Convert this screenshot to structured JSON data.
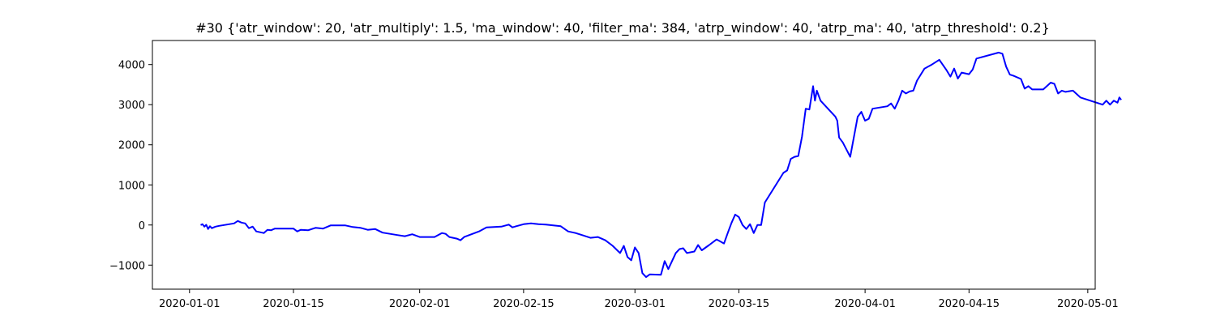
{
  "chart_data": {
    "type": "line",
    "title": "#30 {'atr_window': 20, 'atr_multiply': 1.5, 'ma_window': 40, 'filter_ma': 384, 'atrp_window': 40, 'atrp_ma': 40, 'atrp_threshold': 0.2}",
    "xlabel": "",
    "ylabel": "",
    "x_range": [
      "2019-12-27",
      "2020-05-02"
    ],
    "ylim": [
      -1600,
      4600
    ],
    "x_ticks": [
      "2020-01-01",
      "2020-01-15",
      "2020-02-01",
      "2020-02-15",
      "2020-03-01",
      "2020-03-15",
      "2020-04-01",
      "2020-04-15",
      "2020-05-01"
    ],
    "y_ticks": [
      -1000,
      0,
      1000,
      2000,
      3000,
      4000
    ],
    "y_tick_labels": [
      "−1000",
      "0",
      "1000",
      "2000",
      "3000",
      "4000"
    ],
    "grid": false,
    "series": [
      {
        "color": "#0000ff",
        "points": [
          [
            "2020-01-02T12:00",
            0
          ],
          [
            "2020-01-02T18:00",
            20
          ],
          [
            "2020-01-03T00:00",
            -40
          ],
          [
            "2020-01-03T06:00",
            5
          ],
          [
            "2020-01-03T12:00",
            -100
          ],
          [
            "2020-01-03T18:00",
            -30
          ],
          [
            "2020-01-04T00:00",
            -80
          ],
          [
            "2020-01-04T12:00",
            -40
          ],
          [
            "2020-01-05T00:00",
            -20
          ],
          [
            "2020-01-06T00:00",
            10
          ],
          [
            "2020-01-07T00:00",
            40
          ],
          [
            "2020-01-07T12:00",
            100
          ],
          [
            "2020-01-08T00:00",
            60
          ],
          [
            "2020-01-08T12:00",
            40
          ],
          [
            "2020-01-09T00:00",
            -80
          ],
          [
            "2020-01-09T12:00",
            -40
          ],
          [
            "2020-01-10T00:00",
            -160
          ],
          [
            "2020-01-11T00:00",
            -200
          ],
          [
            "2020-01-11T12:00",
            -120
          ],
          [
            "2020-01-12T00:00",
            -130
          ],
          [
            "2020-01-12T12:00",
            -90
          ],
          [
            "2020-01-15T00:00",
            -90
          ],
          [
            "2020-01-15T12:00",
            -160
          ],
          [
            "2020-01-16T00:00",
            -120
          ],
          [
            "2020-01-17T00:00",
            -130
          ],
          [
            "2020-01-18T00:00",
            -70
          ],
          [
            "2020-01-19T00:00",
            -90
          ],
          [
            "2020-01-20T00:00",
            -10
          ],
          [
            "2020-01-22T00:00",
            -10
          ],
          [
            "2020-01-23T00:00",
            -50
          ],
          [
            "2020-01-24T00:00",
            -70
          ],
          [
            "2020-01-25T00:00",
            -120
          ],
          [
            "2020-01-26T00:00",
            -100
          ],
          [
            "2020-01-27T00:00",
            -190
          ],
          [
            "2020-01-29T00:00",
            -250
          ],
          [
            "2020-01-30T00:00",
            -280
          ],
          [
            "2020-01-31T00:00",
            -230
          ],
          [
            "2020-02-01T00:00",
            -300
          ],
          [
            "2020-02-03T00:00",
            -300
          ],
          [
            "2020-02-04T00:00",
            -200
          ],
          [
            "2020-02-04T12:00",
            -220
          ],
          [
            "2020-02-05T00:00",
            -300
          ],
          [
            "2020-02-06T00:00",
            -340
          ],
          [
            "2020-02-06T12:00",
            -380
          ],
          [
            "2020-02-07T00:00",
            -300
          ],
          [
            "2020-02-09T00:00",
            -160
          ],
          [
            "2020-02-10T00:00",
            -60
          ],
          [
            "2020-02-12T00:00",
            -40
          ],
          [
            "2020-02-13T00:00",
            10
          ],
          [
            "2020-02-13T12:00",
            -60
          ],
          [
            "2020-02-14T00:00",
            -30
          ],
          [
            "2020-02-15T00:00",
            20
          ],
          [
            "2020-02-16T00:00",
            40
          ],
          [
            "2020-02-17T00:00",
            20
          ],
          [
            "2020-02-18T00:00",
            10
          ],
          [
            "2020-02-20T00:00",
            -30
          ],
          [
            "2020-02-21T00:00",
            -160
          ],
          [
            "2020-02-22T00:00",
            -200
          ],
          [
            "2020-02-23T00:00",
            -260
          ],
          [
            "2020-02-24T00:00",
            -320
          ],
          [
            "2020-02-25T00:00",
            -300
          ],
          [
            "2020-02-26T00:00",
            -380
          ],
          [
            "2020-02-27T00:00",
            -520
          ],
          [
            "2020-02-28T00:00",
            -700
          ],
          [
            "2020-02-28T12:00",
            -520
          ],
          [
            "2020-02-29T00:00",
            -800
          ],
          [
            "2020-02-29T12:00",
            -880
          ],
          [
            "2020-03-01T00:00",
            -560
          ],
          [
            "2020-03-01T12:00",
            -700
          ],
          [
            "2020-03-02T00:00",
            -1200
          ],
          [
            "2020-03-02T12:00",
            -1300
          ],
          [
            "2020-03-03T00:00",
            -1230
          ],
          [
            "2020-03-04T12:00",
            -1240
          ],
          [
            "2020-03-05T00:00",
            -900
          ],
          [
            "2020-03-05T12:00",
            -1100
          ],
          [
            "2020-03-06T00:00",
            -900
          ],
          [
            "2020-03-06T12:00",
            -700
          ],
          [
            "2020-03-07T00:00",
            -600
          ],
          [
            "2020-03-07T12:00",
            -580
          ],
          [
            "2020-03-08T00:00",
            -700
          ],
          [
            "2020-03-09T00:00",
            -660
          ],
          [
            "2020-03-09T12:00",
            -500
          ],
          [
            "2020-03-10T00:00",
            -630
          ],
          [
            "2020-03-11T00:00",
            -500
          ],
          [
            "2020-03-12T00:00",
            -360
          ],
          [
            "2020-03-13T00:00",
            -460
          ],
          [
            "2020-03-13T12:00",
            -200
          ],
          [
            "2020-03-14T00:00",
            50
          ],
          [
            "2020-03-14T12:00",
            260
          ],
          [
            "2020-03-15T00:00",
            200
          ],
          [
            "2020-03-15T12:00",
            0
          ],
          [
            "2020-03-16T00:00",
            -100
          ],
          [
            "2020-03-16T12:00",
            20
          ],
          [
            "2020-03-17T00:00",
            -200
          ],
          [
            "2020-03-17T12:00",
            0
          ],
          [
            "2020-03-18T00:00",
            0
          ],
          [
            "2020-03-18T12:00",
            560
          ],
          [
            "2020-03-21T00:00",
            1300
          ],
          [
            "2020-03-21T12:00",
            1360
          ],
          [
            "2020-03-22T00:00",
            1650
          ],
          [
            "2020-03-22T12:00",
            1700
          ],
          [
            "2020-03-23T00:00",
            1720
          ],
          [
            "2020-03-23T12:00",
            2200
          ],
          [
            "2020-03-24T00:00",
            2900
          ],
          [
            "2020-03-24T12:00",
            2880
          ],
          [
            "2020-03-25T00:00",
            3460
          ],
          [
            "2020-03-25T06:00",
            3100
          ],
          [
            "2020-03-25T12:00",
            3350
          ],
          [
            "2020-03-26T00:00",
            3100
          ],
          [
            "2020-03-28T00:00",
            2700
          ],
          [
            "2020-03-28T06:00",
            2600
          ],
          [
            "2020-03-28T12:00",
            2180
          ],
          [
            "2020-03-29T00:00",
            2060
          ],
          [
            "2020-03-29T12:00",
            1880
          ],
          [
            "2020-03-30T00:00",
            1700
          ],
          [
            "2020-03-30T12:00",
            2200
          ],
          [
            "2020-03-31T00:00",
            2700
          ],
          [
            "2020-03-31T12:00",
            2820
          ],
          [
            "2020-04-01T00:00",
            2600
          ],
          [
            "2020-04-01T12:00",
            2650
          ],
          [
            "2020-04-02T00:00",
            2900
          ],
          [
            "2020-04-04T00:00",
            2960
          ],
          [
            "2020-04-04T12:00",
            3030
          ],
          [
            "2020-04-05T00:00",
            2900
          ],
          [
            "2020-04-05T12:00",
            3100
          ],
          [
            "2020-04-06T00:00",
            3350
          ],
          [
            "2020-04-06T12:00",
            3280
          ],
          [
            "2020-04-07T00:00",
            3330
          ],
          [
            "2020-04-07T12:00",
            3350
          ],
          [
            "2020-04-08T00:00",
            3600
          ],
          [
            "2020-04-09T00:00",
            3900
          ],
          [
            "2020-04-10T00:00",
            4000
          ],
          [
            "2020-04-11T00:00",
            4120
          ],
          [
            "2020-04-12T00:00",
            3850
          ],
          [
            "2020-04-12T12:00",
            3700
          ],
          [
            "2020-04-13T00:00",
            3900
          ],
          [
            "2020-04-13T12:00",
            3650
          ],
          [
            "2020-04-14T00:00",
            3800
          ],
          [
            "2020-04-15T00:00",
            3760
          ],
          [
            "2020-04-15T12:00",
            3880
          ],
          [
            "2020-04-16T00:00",
            4150
          ],
          [
            "2020-04-19T00:00",
            4300
          ],
          [
            "2020-04-19T12:00",
            4270
          ],
          [
            "2020-04-20T00:00",
            3950
          ],
          [
            "2020-04-20T12:00",
            3750
          ],
          [
            "2020-04-21T00:00",
            3720
          ],
          [
            "2020-04-22T00:00",
            3640
          ],
          [
            "2020-04-22T12:00",
            3400
          ],
          [
            "2020-04-23T00:00",
            3460
          ],
          [
            "2020-04-23T12:00",
            3380
          ],
          [
            "2020-04-25T00:00",
            3380
          ],
          [
            "2020-04-26T00:00",
            3550
          ],
          [
            "2020-04-26T12:00",
            3520
          ],
          [
            "2020-04-27T00:00",
            3280
          ],
          [
            "2020-04-27T12:00",
            3350
          ],
          [
            "2020-04-28T00:00",
            3320
          ],
          [
            "2020-04-29T00:00",
            3350
          ],
          [
            "2020-04-30T00:00",
            3180
          ],
          [
            "2020-05-03T00:00",
            3000
          ],
          [
            "2020-05-03T12:00",
            3100
          ],
          [
            "2020-05-04T00:00",
            3000
          ],
          [
            "2020-05-04T12:00",
            3100
          ],
          [
            "2020-05-05T00:00",
            3050
          ],
          [
            "2020-05-05T06:00",
            3180
          ],
          [
            "2020-05-05T12:00",
            3120
          ]
        ]
      }
    ]
  }
}
